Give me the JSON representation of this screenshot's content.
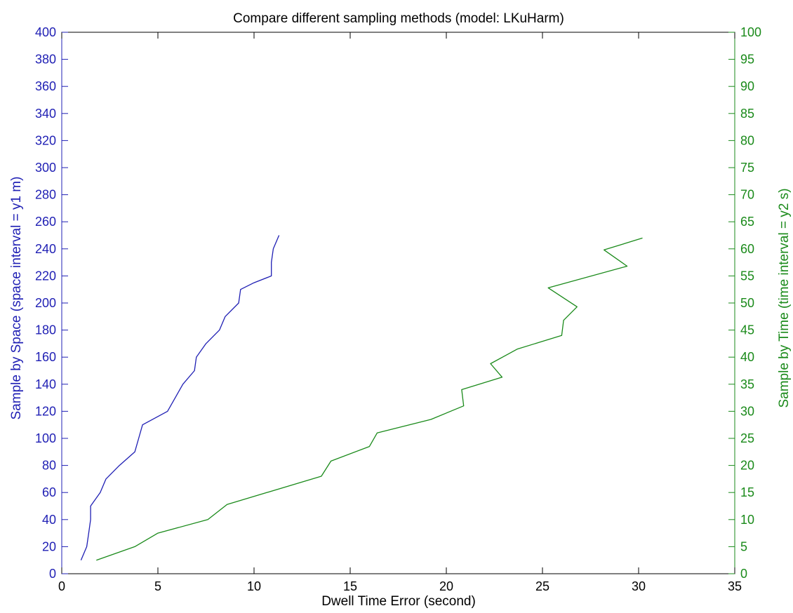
{
  "chart_data": {
    "type": "line",
    "title": "Compare different sampling methods (model: LKuHarm)",
    "xlabel": "Dwell Time Error (second)",
    "ylabel_left": "Sample by Space (space interval = y1 m)",
    "ylabel_right": "Sample by Time (time interval = y2 s)",
    "xlim": [
      0,
      35
    ],
    "ylim_left": [
      0,
      400
    ],
    "ylim_right": [
      0,
      100
    ],
    "x_ticks": [
      0,
      5,
      10,
      15,
      20,
      25,
      30,
      35
    ],
    "y_left_ticks": [
      0,
      20,
      40,
      60,
      80,
      100,
      120,
      140,
      160,
      180,
      200,
      220,
      240,
      260,
      280,
      300,
      320,
      340,
      360,
      380,
      400
    ],
    "y_right_ticks": [
      0,
      5,
      10,
      15,
      20,
      25,
      30,
      35,
      40,
      45,
      50,
      55,
      60,
      65,
      70,
      75,
      80,
      85,
      90,
      95,
      100
    ],
    "grid": false,
    "colors": {
      "left_axis": "#1f1fb4",
      "right_axis": "#1a8a1a",
      "axes": "#000000"
    },
    "series": [
      {
        "axis": "left",
        "color": "#1f1fb4",
        "points": [
          [
            1.0,
            10
          ],
          [
            1.3,
            20
          ],
          [
            1.4,
            30
          ],
          [
            1.5,
            40
          ],
          [
            1.5,
            50
          ],
          [
            2.0,
            60
          ],
          [
            2.3,
            70
          ],
          [
            3.0,
            80
          ],
          [
            3.8,
            90
          ],
          [
            4.0,
            100
          ],
          [
            4.2,
            110
          ],
          [
            5.5,
            120
          ],
          [
            5.9,
            130
          ],
          [
            6.3,
            140
          ],
          [
            6.9,
            150
          ],
          [
            7.0,
            160
          ],
          [
            7.5,
            170
          ],
          [
            8.2,
            180
          ],
          [
            8.5,
            190
          ],
          [
            9.2,
            200
          ],
          [
            9.3,
            210
          ],
          [
            10.0,
            215
          ],
          [
            10.9,
            220
          ],
          [
            10.9,
            230
          ],
          [
            11.0,
            240
          ],
          [
            11.3,
            250
          ]
        ]
      },
      {
        "axis": "right",
        "color": "#1a8a1a",
        "points": [
          [
            1.8,
            2.5
          ],
          [
            3.8,
            5.0
          ],
          [
            5.0,
            7.5
          ],
          [
            7.6,
            10.0
          ],
          [
            8.6,
            12.8
          ],
          [
            13.5,
            18.0
          ],
          [
            14.0,
            20.8
          ],
          [
            16.0,
            23.5
          ],
          [
            16.4,
            26.0
          ],
          [
            19.2,
            28.5
          ],
          [
            20.9,
            31.0
          ],
          [
            20.8,
            34.0
          ],
          [
            22.9,
            36.3
          ],
          [
            22.3,
            38.8
          ],
          [
            23.7,
            41.5
          ],
          [
            26.0,
            44.0
          ],
          [
            26.1,
            46.8
          ],
          [
            26.8,
            49.3
          ],
          [
            25.3,
            52.8
          ],
          [
            29.4,
            56.8
          ],
          [
            28.2,
            59.8
          ],
          [
            30.2,
            62.0
          ]
        ]
      }
    ]
  }
}
